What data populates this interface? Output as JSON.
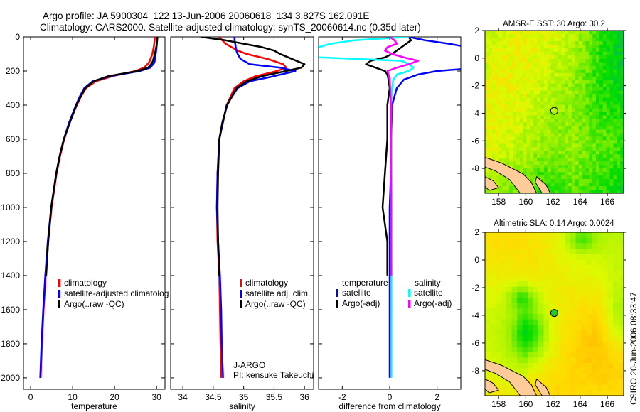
{
  "title_line1": "Argo profile: JA 5900304_122 13-Jun-2006 20060618_134 3.827S 162.091E",
  "title_line2": "Climatology: CARS2000. Satellite-adjusted climatology: synTS_20060614.nc (0.35d later)",
  "side_label": "CSIRO 20-Jun-2006 08:33:47",
  "colors": {
    "climatology": "#ff0000",
    "satellite": "#0000ff",
    "argo": "#000000",
    "sal_satellite": "#00ffff",
    "sal_argo": "#ff00ff",
    "land": "#ffcc99"
  },
  "chart_data": [
    {
      "type": "line",
      "xlabel": "temperature",
      "ylabel": "",
      "xlim": [
        -1.7,
        32
      ],
      "ylim": [
        2067,
        0
      ],
      "xticks": [
        "0",
        "10",
        "20",
        "30"
      ],
      "xtick_values": [
        0,
        10,
        20,
        30
      ],
      "yticks": [
        "0",
        "200",
        "400",
        "600",
        "800",
        "1000",
        "1200",
        "1400",
        "1600",
        "1800",
        "2000"
      ],
      "ytick_values": [
        0,
        200,
        400,
        600,
        800,
        1000,
        1200,
        1400,
        1600,
        1800,
        2000
      ],
      "legend": [
        "climatology",
        "satellite-adjusted climatolog",
        "Argo(..raw -QC)"
      ],
      "depth": [
        0,
        30,
        60,
        100,
        150,
        180,
        200,
        230,
        260,
        300,
        350,
        400,
        500,
        600,
        700,
        800,
        1000,
        1200,
        1400,
        1600,
        1800,
        2000
      ],
      "series": [
        {
          "name": "climatology",
          "color": "#ff0000",
          "values": [
            29.6,
            29.5,
            29.3,
            29.0,
            28.2,
            27.0,
            25.0,
            19.5,
            15.5,
            13.2,
            12.0,
            11.0,
            9.3,
            8.0,
            7.0,
            6.2,
            5.0,
            4.2,
            3.6,
            3.1,
            2.7,
            2.4
          ]
        },
        {
          "name": "satellite-adjusted climatology",
          "color": "#0000ff",
          "values": [
            30.1,
            30.1,
            30.0,
            29.8,
            29.5,
            28.5,
            26.0,
            19.0,
            14.8,
            12.8,
            11.7,
            10.8,
            9.2,
            7.9,
            6.9,
            6.1,
            4.9,
            4.1,
            3.5,
            3.0,
            2.6,
            2.3
          ]
        },
        {
          "name": "Argo(..raw -QC)",
          "color": "#000000",
          "values": [
            30.2,
            30.1,
            29.9,
            29.6,
            29.0,
            28.0,
            25.5,
            18.5,
            15.0,
            13.0,
            11.9,
            10.9,
            9.4,
            7.9,
            6.9,
            6.1,
            4.9,
            4.2,
            3.7,
            null,
            null,
            null
          ]
        }
      ]
    },
    {
      "type": "line",
      "xlabel": "salinity",
      "xlim": [
        33.8,
        36.15
      ],
      "ylim": [
        2067,
        0
      ],
      "xticks": [
        "34",
        "34.5",
        "35",
        "35.5",
        "36"
      ],
      "xtick_values": [
        34,
        34.5,
        35,
        35.5,
        36
      ],
      "legend": [
        "climatology",
        "satellite adj. clim.",
        "Argo(..raw -QC)"
      ],
      "annotation": [
        "J-ARGO",
        "PI: kensuke Takeuchi"
      ],
      "depth": [
        0,
        20,
        40,
        60,
        80,
        100,
        130,
        160,
        180,
        200,
        230,
        260,
        300,
        400,
        500,
        600,
        800,
        1000,
        1200,
        1400,
        1600,
        1800,
        2000
      ],
      "series": [
        {
          "name": "climatology",
          "color": "#ff0000",
          "values": [
            34.6,
            34.65,
            34.7,
            34.8,
            34.9,
            35.05,
            35.4,
            35.65,
            35.7,
            35.55,
            35.2,
            35.0,
            34.85,
            34.72,
            34.66,
            34.6,
            34.57,
            34.56,
            34.57,
            34.6,
            34.61,
            34.62,
            34.63
          ]
        },
        {
          "name": "satellite adj. clim.",
          "color": "#0000ff",
          "values": [
            34.85,
            34.85,
            34.86,
            34.87,
            34.88,
            34.9,
            34.95,
            35.1,
            35.6,
            35.85,
            35.5,
            35.1,
            34.9,
            34.72,
            34.66,
            34.6,
            34.57,
            34.56,
            34.58,
            34.61,
            34.63,
            34.64,
            34.66
          ]
        },
        {
          "name": "Argo(..raw -QC)",
          "color": "#000000",
          "values": [
            34.3,
            34.7,
            35.0,
            35.3,
            35.5,
            35.6,
            35.8,
            36.0,
            35.95,
            35.7,
            35.3,
            35.05,
            34.88,
            34.73,
            34.65,
            34.6,
            34.58,
            34.57,
            34.58,
            34.6,
            null,
            null,
            null
          ]
        }
      ]
    },
    {
      "type": "line",
      "xlabel": "difference from climatology",
      "xlim": [
        -3,
        3
      ],
      "ylim": [
        2067,
        0
      ],
      "xticks": [
        "-2",
        "0",
        "2"
      ],
      "xtick_values": [
        -2,
        0,
        2
      ],
      "legend_titles": [
        "temperature",
        "salinity"
      ],
      "legend": [
        "satellite",
        "Argo(-adj)",
        "satellite",
        "Argo(-adj)"
      ],
      "depth": [
        0,
        20,
        40,
        60,
        80,
        100,
        120,
        140,
        160,
        180,
        200,
        220,
        250,
        300,
        400,
        600,
        800,
        1000,
        1200,
        1400,
        1600,
        1800,
        2000
      ],
      "series": [
        {
          "name": "temperature satellite",
          "color": "#0000ff",
          "values": [
            0.8,
            1.5,
            2.5,
            3.3,
            4,
            4.5,
            4.5,
            5,
            5,
            3.8,
            2,
            1.2,
            0.6,
            0.3,
            0.1,
            0.05,
            0.05,
            0.0,
            0.0,
            0.0,
            0.0,
            0.0,
            0.0
          ]
        },
        {
          "name": "temperature Argo(-adj)",
          "color": "#000000",
          "values": [
            0.8,
            0.9,
            0.7,
            0.5,
            0.3,
            0.1,
            -0.2,
            -0.8,
            -1.0,
            -0.6,
            -0.2,
            -0.1,
            -0.05,
            0.0,
            -0.1,
            -0.1,
            -0.2,
            -0.3,
            -0.1,
            -0.1,
            null,
            null,
            null
          ]
        },
        {
          "name": "salinity satellite",
          "color": "#00ffff",
          "values": [
            0.8,
            -1.5,
            -2.5,
            -3,
            -3.5,
            -3.6,
            -3,
            0.5,
            0.8,
            1.0,
            0.8,
            0.3,
            0.15,
            0.1,
            0.05,
            0.05,
            0.05,
            0.06,
            0.06,
            0.07,
            0.07,
            0.07,
            0.07
          ]
        },
        {
          "name": "salinity Argo(-adj)",
          "color": "#ff00ff",
          "values": [
            0.0,
            0.2,
            0.3,
            -0.1,
            -0.2,
            0.1,
            0.6,
            1.2,
            0.8,
            0.3,
            -0.1,
            -0.05,
            0.0,
            0.02,
            0.05,
            0.05,
            0.05,
            0.06,
            0.06,
            0.07,
            null,
            null,
            null
          ]
        }
      ]
    },
    {
      "type": "heatmap",
      "title": "AMSR-E SST: 30 Argo: 30.2",
      "xlim": [
        157,
        167.2
      ],
      "ylim": [
        -9.8,
        2
      ],
      "xticks": [
        "158",
        "160",
        "162",
        "164",
        "166"
      ],
      "xtick_values": [
        158,
        160,
        162,
        164,
        166
      ],
      "yticks": [
        "2",
        "0",
        "-2",
        "-4",
        "-6",
        "-8"
      ],
      "ytick_values": [
        2,
        0,
        -2,
        -4,
        -6,
        -8
      ],
      "marker": {
        "lon": 162.091,
        "lat": -3.827
      }
    },
    {
      "type": "heatmap",
      "title": "Altimetric SLA: 0.14 Argo: 0.0024",
      "xlim": [
        157,
        167.2
      ],
      "ylim": [
        -9.8,
        2
      ],
      "xticks": [
        "158",
        "160",
        "162",
        "164",
        "166"
      ],
      "xtick_values": [
        158,
        160,
        162,
        164,
        166
      ],
      "yticks": [
        "2",
        "0",
        "-2",
        "-4",
        "-6",
        "-8"
      ],
      "ytick_values": [
        2,
        0,
        -2,
        -4,
        -6,
        -8
      ],
      "marker": {
        "lon": 162.091,
        "lat": -3.827
      }
    }
  ]
}
